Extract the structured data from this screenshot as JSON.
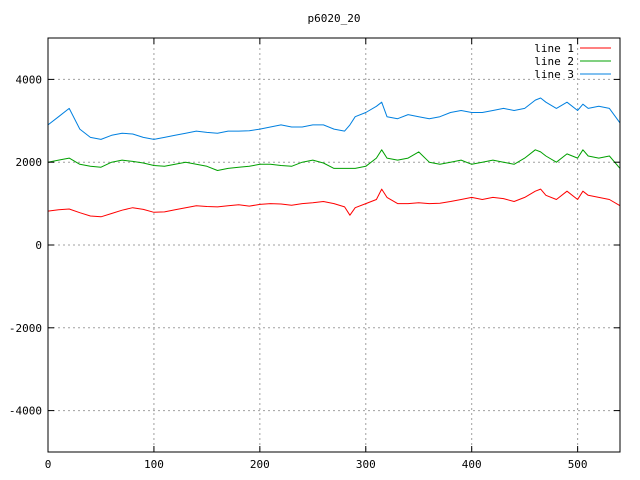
{
  "chart_data": {
    "type": "line",
    "title": "p6020_20",
    "xlabel": "",
    "ylabel": "",
    "xlim": [
      0,
      540
    ],
    "ylim": [
      -5000,
      5000
    ],
    "x_ticks": [
      0,
      100,
      200,
      300,
      400,
      500
    ],
    "y_ticks": [
      -4000,
      -2000,
      0,
      2000,
      4000
    ],
    "grid": true,
    "legend_position": "top-right",
    "x": [
      0,
      10,
      20,
      30,
      40,
      50,
      60,
      70,
      80,
      90,
      100,
      110,
      120,
      130,
      140,
      150,
      160,
      170,
      180,
      190,
      200,
      210,
      220,
      230,
      240,
      250,
      260,
      270,
      280,
      285,
      290,
      300,
      310,
      315,
      320,
      330,
      340,
      350,
      360,
      370,
      380,
      390,
      400,
      410,
      420,
      430,
      440,
      450,
      460,
      465,
      470,
      480,
      490,
      500,
      505,
      510,
      520,
      530,
      540
    ],
    "series": [
      {
        "name": "line 1",
        "color": "#ff0000",
        "values": [
          820,
          850,
          870,
          780,
          700,
          680,
          760,
          840,
          900,
          860,
          790,
          800,
          850,
          900,
          950,
          930,
          920,
          950,
          970,
          940,
          980,
          1000,
          990,
          960,
          1000,
          1020,
          1050,
          1000,
          920,
          720,
          900,
          1000,
          1100,
          1350,
          1150,
          1000,
          1000,
          1020,
          1000,
          1010,
          1050,
          1100,
          1150,
          1100,
          1150,
          1120,
          1050,
          1150,
          1300,
          1350,
          1200,
          1100,
          1300,
          1100,
          1300,
          1200,
          1150,
          1100,
          950
        ]
      },
      {
        "name": "line 2",
        "color": "#00a000",
        "values": [
          2000,
          2050,
          2100,
          1950,
          1900,
          1880,
          2000,
          2050,
          2020,
          1980,
          1920,
          1900,
          1950,
          2000,
          1950,
          1900,
          1800,
          1850,
          1880,
          1900,
          1950,
          1950,
          1920,
          1900,
          2000,
          2050,
          1980,
          1850,
          1850,
          1850,
          1850,
          1900,
          2100,
          2300,
          2100,
          2050,
          2100,
          2250,
          2000,
          1950,
          2000,
          2050,
          1950,
          2000,
          2050,
          2000,
          1950,
          2100,
          2300,
          2250,
          2150,
          2000,
          2200,
          2100,
          2300,
          2150,
          2100,
          2150,
          1850
        ]
      },
      {
        "name": "line 3",
        "color": "#0080e0",
        "values": [
          2900,
          3100,
          3300,
          2800,
          2600,
          2550,
          2650,
          2700,
          2680,
          2600,
          2550,
          2600,
          2650,
          2700,
          2750,
          2720,
          2700,
          2750,
          2750,
          2760,
          2800,
          2850,
          2900,
          2850,
          2850,
          2900,
          2900,
          2800,
          2750,
          2900,
          3100,
          3200,
          3350,
          3450,
          3100,
          3050,
          3150,
          3100,
          3050,
          3100,
          3200,
          3250,
          3200,
          3200,
          3250,
          3300,
          3250,
          3300,
          3500,
          3550,
          3450,
          3300,
          3450,
          3250,
          3400,
          3300,
          3350,
          3300,
          2950
        ]
      }
    ]
  }
}
